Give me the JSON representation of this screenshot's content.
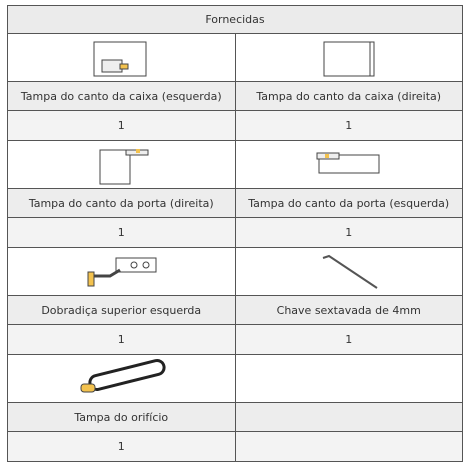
{
  "header": {
    "title": "Fornecidas"
  },
  "items": [
    {
      "label": "Tampa do canto da caixa (esquerda)",
      "quantity": "1"
    },
    {
      "label": "Tampa do canto da caixa (direita)",
      "quantity": "1"
    },
    {
      "label": "Tampa do canto da porta (direita)",
      "quantity": "1"
    },
    {
      "label": "Tampa do canto da porta (esquerda)",
      "quantity": "1"
    },
    {
      "label": "Dobradiça superior esquerda",
      "quantity": "1"
    },
    {
      "label": "Chave sextavada de 4mm",
      "quantity": "1"
    },
    {
      "label": "Tampa do orifício",
      "quantity": "1"
    }
  ]
}
